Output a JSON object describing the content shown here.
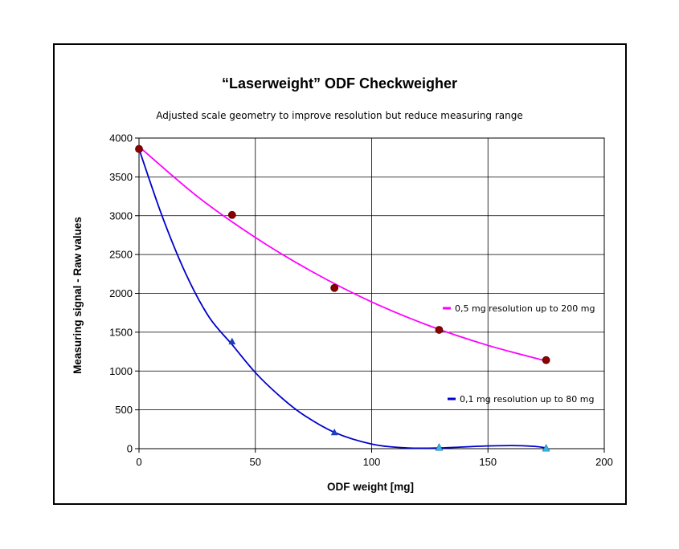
{
  "chart_data": {
    "type": "scatter",
    "title": "“Laserweight” ODF Checkweigher",
    "subtitle": "Adjusted scale geometry to improve resolution but reduce measuring range",
    "xlabel": "ODF weight [mg]",
    "ylabel": "Measuring signal -  Raw values",
    "xlim": [
      0,
      200
    ],
    "ylim": [
      0,
      4000
    ],
    "x_ticks": [
      0,
      50,
      100,
      150,
      200
    ],
    "y_ticks": [
      0,
      500,
      1000,
      1500,
      2000,
      2500,
      3000,
      3500,
      4000
    ],
    "grid": true,
    "series": [
      {
        "name": "0,5 mg resolution up to 200 mg",
        "color": "#ff00ff",
        "marker_color": "#8b0000",
        "marker": "circle",
        "x": [
          0,
          40,
          84,
          129,
          175
        ],
        "y": [
          3860,
          3010,
          2070,
          1530,
          1140
        ],
        "trend_x": [
          0,
          25,
          50,
          75,
          100,
          125,
          150,
          175
        ],
        "trend_y": [
          3890,
          3250,
          2720,
          2270,
          1890,
          1580,
          1330,
          1130
        ]
      },
      {
        "name": "0,1 mg resolution up to 80 mg",
        "color": "#0000cd",
        "marker_color": "#1a3fbf",
        "marker": "triangle",
        "x": [
          0,
          40,
          84,
          129,
          175
        ],
        "y": [
          3860,
          1380,
          210,
          15,
          5
        ],
        "trend_x": [
          0,
          10,
          20,
          30,
          40,
          50,
          60,
          70,
          84,
          100,
          115,
          130,
          145,
          160,
          170,
          175
        ],
        "trend_y": [
          3860,
          2990,
          2260,
          1700,
          1340,
          980,
          690,
          450,
          210,
          60,
          10,
          10,
          30,
          40,
          30,
          10
        ]
      }
    ],
    "legend": [
      {
        "label": "0,5 mg resolution up to 200 mg",
        "color": "#ff00ff"
      },
      {
        "label": "0,1 mg resolution up to 80 mg",
        "color": "#0000cd"
      }
    ],
    "extra_markers": [
      {
        "x": 129,
        "y": 15,
        "color": "#33b5e5"
      },
      {
        "x": 175,
        "y": 5,
        "color": "#33b5e5"
      }
    ]
  }
}
